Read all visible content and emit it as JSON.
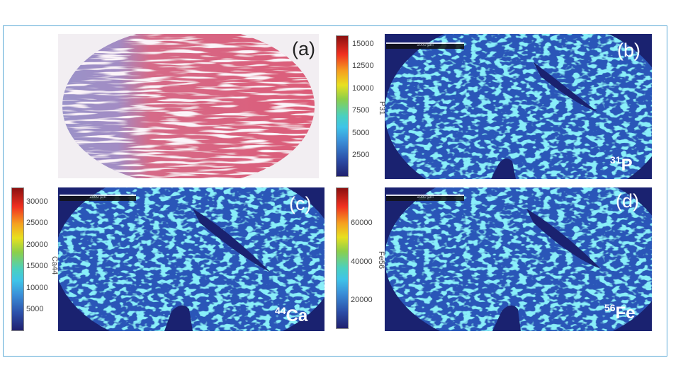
{
  "panels": {
    "a": {
      "label": "(a)"
    },
    "b": {
      "label": "(b)",
      "element_mass": "31",
      "element_symbol": "P",
      "colorbar_label": "P31",
      "ticks": [
        "15000",
        "12500",
        "10000",
        "7500",
        "5000",
        "2500"
      ],
      "scale_bar": "1000 µm"
    },
    "c": {
      "label": "(c)",
      "element_mass": "44",
      "element_symbol": "Ca",
      "colorbar_label": "Ca44",
      "ticks": [
        "30000",
        "25000",
        "20000",
        "15000",
        "10000",
        "5000"
      ],
      "scale_bar": "1000 µm"
    },
    "d": {
      "label": "(d)",
      "element_mass": "56",
      "element_symbol": "Fe",
      "colorbar_label": "Fe56",
      "ticks": [
        "60000",
        "40000",
        "20000"
      ],
      "scale_bar": "1000 µm"
    }
  },
  "colors": {
    "frame": "#5aa9d6",
    "background_map": "#1a2270",
    "tissue_map": "#2a56b8",
    "hotspot": "#3fd0f0",
    "stain_pink": "#d8607a",
    "stain_purple": "#8c86c0"
  }
}
